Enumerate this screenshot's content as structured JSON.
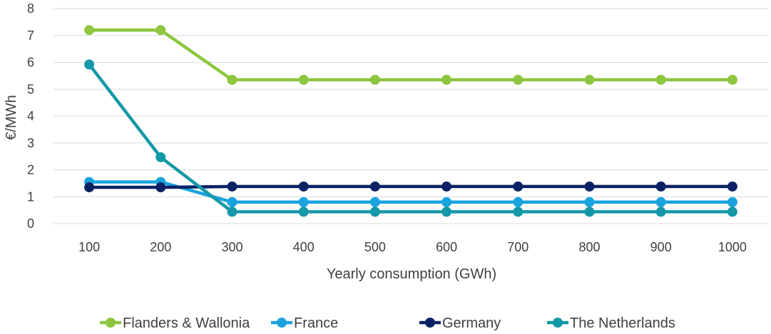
{
  "chart_data": {
    "type": "line",
    "title": "",
    "xlabel": "Yearly consumption (GWh)",
    "ylabel": "€/MWh",
    "categories": [
      "100",
      "200",
      "300",
      "400",
      "500",
      "600",
      "700",
      "800",
      "900",
      "1000"
    ],
    "ylim": [
      0,
      8
    ],
    "yticks": [
      "0",
      "1",
      "2",
      "3",
      "4",
      "5",
      "6",
      "7",
      "8"
    ],
    "grid": true,
    "legend_position": "bottom",
    "series": [
      {
        "name": "Flanders & Wallonia",
        "color": "#8dc63f",
        "values": [
          7.2,
          7.2,
          5.35,
          5.35,
          5.35,
          5.35,
          5.35,
          5.35,
          5.35,
          5.35
        ]
      },
      {
        "name": "France",
        "color": "#1aa3dd",
        "values": [
          1.55,
          1.55,
          0.8,
          0.8,
          0.8,
          0.8,
          0.8,
          0.8,
          0.8,
          0.8
        ]
      },
      {
        "name": "Germany",
        "color": "#0b2265",
        "values": [
          1.35,
          1.35,
          1.38,
          1.38,
          1.38,
          1.38,
          1.38,
          1.38,
          1.38,
          1.38
        ]
      },
      {
        "name": "The Netherlands",
        "color": "#1498a8",
        "values": [
          5.92,
          2.47,
          0.44,
          0.44,
          0.44,
          0.44,
          0.44,
          0.44,
          0.44,
          0.44
        ]
      }
    ]
  }
}
